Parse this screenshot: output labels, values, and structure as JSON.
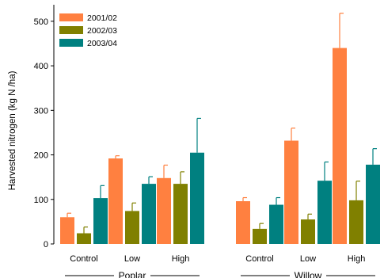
{
  "chart_data": {
    "type": "bar",
    "ylabel": "Harvested nitrogen (kg N /ha)",
    "xlabel": "",
    "ylim": [
      0,
      530
    ],
    "yticks": [
      0,
      100,
      200,
      300,
      400,
      500
    ],
    "grid": false,
    "legend_position": "top-left",
    "groups": [
      {
        "name": "Poplar",
        "categories": [
          "Control",
          "Low",
          "High"
        ]
      },
      {
        "name": "Willow",
        "categories": [
          "Control",
          "Low",
          "High"
        ]
      }
    ],
    "series": [
      {
        "name": "2001/02",
        "color": "#ff8040",
        "values": [
          60,
          192,
          148,
          96,
          232,
          440
        ],
        "errors": [
          9,
          6,
          29,
          8,
          28,
          78
        ]
      },
      {
        "name": "2002/03",
        "color": "#808000",
        "values": [
          24,
          74,
          135,
          34,
          55,
          98
        ],
        "errors": [
          14,
          18,
          27,
          12,
          12,
          43
        ]
      },
      {
        "name": "2003/04",
        "color": "#008080",
        "values": [
          103,
          135,
          205,
          88,
          142,
          178
        ],
        "errors": [
          28,
          16,
          77,
          16,
          42,
          36
        ]
      }
    ]
  }
}
